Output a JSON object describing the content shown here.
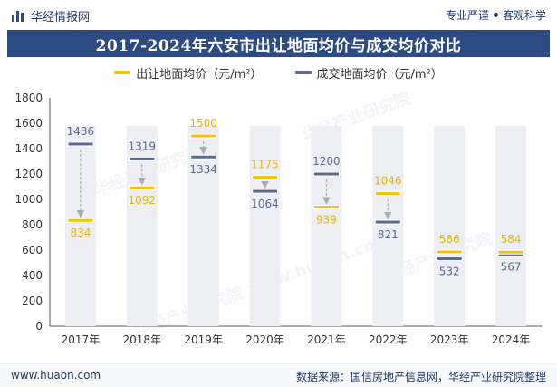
{
  "header": {
    "brand": "华经情报网",
    "slogan_left": "专业严谨",
    "slogan_right": "客观科学"
  },
  "footer": {
    "site": "www.huaon.com",
    "source": "数据来源：国信房地产信息网，华经产业研究院整理"
  },
  "watermarks": [
    "华经产业研究院",
    "华经产业研究院",
    "华经产业研究院",
    "华经产业研究院 www.huaon.com"
  ],
  "colors": {
    "title_bg": "#2c4b82",
    "series_land": "#f5c400",
    "series_deal": "#5b6a8f",
    "bar_bg": "#eceef4",
    "arrow": "#aaaaaa"
  },
  "chart_data": {
    "type": "bar",
    "title": "2017-2024年六安市出让地面均价与成交均价对比",
    "categories": [
      "2017年",
      "2018年",
      "2019年",
      "2020年",
      "2021年",
      "2022年",
      "2023年",
      "2024年"
    ],
    "series": [
      {
        "name": "出让地面均价（元/m²）",
        "values": [
          834,
          1092,
          1500,
          1175,
          939,
          1046,
          586,
          584
        ]
      },
      {
        "name": "成交地面均价（元/m²）",
        "values": [
          1436,
          1319,
          1334,
          1064,
          1200,
          821,
          532,
          567
        ]
      }
    ],
    "ylim": [
      0,
      1800
    ],
    "yticks": [
      "0",
      "200",
      "400",
      "600",
      "800",
      "1000",
      "1200",
      "1400",
      "1600",
      "1800"
    ],
    "xlabel": "",
    "ylabel": ""
  }
}
